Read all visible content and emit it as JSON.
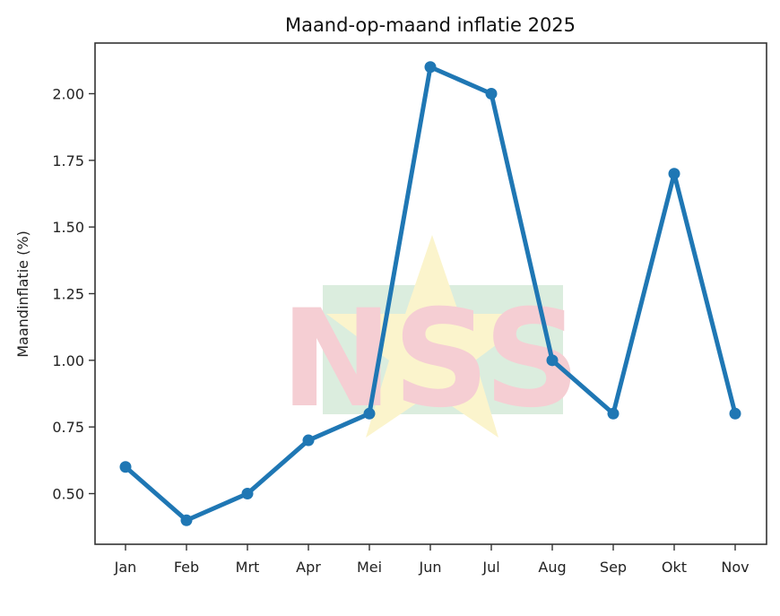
{
  "chart_data": {
    "type": "line",
    "title": "Maand-op-maand inflatie 2025",
    "xlabel": "",
    "ylabel": "Maandinflatie (%)",
    "categories": [
      "Jan",
      "Feb",
      "Mrt",
      "Apr",
      "Mei",
      "Jun",
      "Jul",
      "Aug",
      "Sep",
      "Okt",
      "Nov"
    ],
    "series": [
      {
        "name": "Maandinflatie",
        "values": [
          0.6,
          0.4,
          0.5,
          0.7,
          0.8,
          2.1,
          2.0,
          1.0,
          0.8,
          1.7,
          0.8
        ],
        "color": "#1f77b4",
        "marker": "circle"
      }
    ],
    "yticks": [
      0.5,
      0.75,
      1.0,
      1.25,
      1.5,
      1.75,
      2.0
    ],
    "ytick_labels": [
      "0.50",
      "0.75",
      "1.00",
      "1.25",
      "1.50",
      "1.75",
      "2.00"
    ],
    "ylim": [
      0.31,
      2.19
    ],
    "grid": false,
    "legend": null,
    "watermark": {
      "text": "NSS",
      "colors": {
        "letters": "#f4c6cc",
        "star": "#fbf3c4",
        "band": "#d5ead9"
      }
    }
  }
}
